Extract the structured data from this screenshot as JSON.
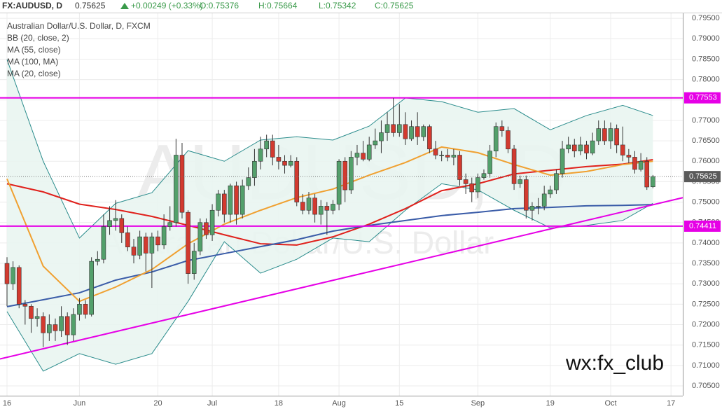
{
  "header": {
    "symbol": "FX:AUDUSD, D",
    "last": "0.75625",
    "change": "+0.00249 (+0.33%)",
    "open": "O:0.75376",
    "high": "H:0.75664",
    "low": "L:0.75342",
    "close": "C:0.75625"
  },
  "chart_data": {
    "type": "candlestick",
    "title": "Australian Dollar/U.S. Dollar, D, FXCM",
    "watermark": "AUDUSD, D",
    "watermark_subtitle": "Australian Dollar/U.S. Dollar",
    "annotation": "wx:fx_club",
    "categories": [
      "16",
      null,
      null,
      null,
      null,
      null,
      null,
      null,
      null,
      null,
      null,
      null,
      "Jun",
      null,
      null,
      null,
      null,
      null,
      null,
      null,
      null,
      null,
      null,
      null,
      null,
      "20",
      null,
      null,
      null,
      null,
      null,
      null,
      null,
      null,
      "Jul",
      null,
      null,
      null,
      null,
      null,
      null,
      null,
      null,
      null,
      null,
      "18",
      null,
      null,
      null,
      null,
      null,
      null,
      null,
      null,
      null,
      "Aug",
      null,
      null,
      null,
      null,
      null,
      null,
      null,
      null,
      null,
      "15",
      null,
      null,
      null,
      null,
      null,
      null,
      null,
      null,
      null,
      null,
      null,
      null,
      "Sep",
      null,
      null,
      null,
      null,
      null,
      null,
      null,
      null,
      null,
      null,
      null,
      "19",
      null,
      null,
      null,
      null,
      null,
      null,
      null,
      null,
      null,
      "Oct",
      null,
      null,
      null,
      null,
      null,
      null,
      null,
      null,
      null,
      "17"
    ],
    "open": [
      0.735,
      0.73,
      0.734,
      0.725,
      0.7245,
      0.7215,
      0.722,
      0.718,
      0.72,
      0.7185,
      0.722,
      0.7175,
      0.7225,
      0.725,
      0.7225,
      0.7355,
      0.736,
      0.744,
      0.7455,
      0.746,
      0.7425,
      0.739,
      0.737,
      0.7415,
      0.7375,
      0.7415,
      0.7395,
      0.744,
      0.745,
      0.7615,
      0.7475,
      0.7325,
      0.738,
      0.745,
      0.742,
      0.748,
      0.752,
      0.747,
      0.754,
      0.747,
      0.754,
      0.756,
      0.76,
      0.763,
      0.765,
      0.761,
      0.76,
      0.759,
      0.76,
      0.75,
      0.748,
      0.751,
      0.747,
      0.749,
      0.748,
      0.7495,
      0.76,
      0.753,
      0.761,
      0.762,
      0.7605,
      0.764,
      0.765,
      0.767,
      0.769,
      0.767,
      0.769,
      0.7655,
      0.7685,
      0.766,
      0.7685,
      0.763,
      0.7615,
      0.7615,
      0.761,
      0.7615,
      0.7555,
      0.7545,
      0.7525,
      0.756,
      0.757,
      0.7625,
      0.7685,
      0.7675,
      0.763,
      0.7545,
      0.7555,
      0.748,
      0.749,
      0.749,
      0.752,
      0.753,
      0.757,
      0.763,
      0.764,
      0.7625,
      0.764,
      0.762,
      0.765,
      0.768,
      0.765,
      0.768,
      0.764,
      0.7615,
      0.761,
      0.758,
      0.76,
      0.75376,
      null,
      null,
      null
    ],
    "high": [
      0.7365,
      0.7355,
      0.7345,
      0.726,
      0.725,
      0.724,
      0.723,
      0.7225,
      0.7215,
      0.7245,
      0.723,
      0.724,
      0.7265,
      0.726,
      0.7365,
      0.738,
      0.747,
      0.749,
      0.7505,
      0.747,
      0.744,
      0.741,
      0.743,
      0.7425,
      0.7425,
      0.743,
      0.747,
      0.749,
      0.7655,
      0.7645,
      0.748,
      0.74,
      0.746,
      0.746,
      0.7495,
      0.753,
      0.753,
      0.7545,
      0.755,
      0.7555,
      0.7585,
      0.763,
      0.766,
      0.7665,
      0.7665,
      0.764,
      0.7615,
      0.7615,
      0.761,
      0.752,
      0.7525,
      0.752,
      0.7505,
      0.75,
      0.7505,
      0.7605,
      0.761,
      0.7625,
      0.764,
      0.765,
      0.766,
      0.768,
      0.77,
      0.772,
      0.7755,
      0.774,
      0.772,
      0.77,
      0.772,
      0.769,
      0.769,
      0.765,
      0.7625,
      0.763,
      0.763,
      0.7625,
      0.757,
      0.756,
      0.757,
      0.758,
      0.764,
      0.7695,
      0.77,
      0.7685,
      0.764,
      0.7565,
      0.7565,
      0.75,
      0.751,
      0.754,
      0.754,
      0.758,
      0.765,
      0.766,
      0.7655,
      0.766,
      0.765,
      0.767,
      0.77,
      0.77,
      0.7695,
      0.769,
      0.7685,
      0.763,
      0.7625,
      0.762,
      0.761,
      0.75664,
      null,
      null,
      null
    ],
    "low": [
      0.7245,
      0.7285,
      0.724,
      0.72,
      0.718,
      0.7195,
      0.7145,
      0.716,
      0.716,
      0.717,
      0.715,
      0.716,
      0.721,
      0.7215,
      0.722,
      0.7345,
      0.735,
      0.742,
      0.743,
      0.74,
      0.738,
      0.735,
      0.736,
      0.733,
      0.729,
      0.738,
      0.7385,
      0.743,
      0.744,
      0.746,
      0.73,
      0.731,
      0.737,
      0.741,
      0.7405,
      0.7465,
      0.745,
      0.745,
      0.7445,
      0.746,
      0.753,
      0.754,
      0.758,
      0.761,
      0.759,
      0.758,
      0.757,
      0.7585,
      0.749,
      0.747,
      0.747,
      0.745,
      0.7445,
      0.742,
      0.747,
      0.748,
      0.75,
      0.752,
      0.759,
      0.76,
      0.76,
      0.763,
      0.762,
      0.765,
      0.766,
      0.766,
      0.764,
      0.765,
      0.764,
      0.765,
      0.762,
      0.7605,
      0.76,
      0.76,
      0.759,
      0.754,
      0.752,
      0.75,
      0.751,
      0.7555,
      0.756,
      0.761,
      0.766,
      0.762,
      0.753,
      0.7535,
      0.746,
      0.7455,
      0.747,
      0.748,
      0.751,
      0.752,
      0.756,
      0.762,
      0.761,
      0.7615,
      0.7605,
      0.7615,
      0.764,
      0.764,
      0.763,
      0.762,
      0.76,
      0.7595,
      0.757,
      0.7575,
      0.753,
      0.75342,
      null,
      null,
      null
    ],
    "close": [
      0.73,
      0.734,
      0.725,
      0.7245,
      0.7215,
      0.722,
      0.718,
      0.72,
      0.7185,
      0.722,
      0.7175,
      0.7225,
      0.725,
      0.7225,
      0.7355,
      0.736,
      0.744,
      0.7455,
      0.746,
      0.7425,
      0.739,
      0.737,
      0.7415,
      0.7375,
      0.7415,
      0.7395,
      0.744,
      0.745,
      0.7615,
      0.7475,
      0.7325,
      0.738,
      0.745,
      0.742,
      0.748,
      0.752,
      0.747,
      0.754,
      0.747,
      0.754,
      0.756,
      0.76,
      0.763,
      0.765,
      0.761,
      0.76,
      0.759,
      0.76,
      0.75,
      0.748,
      0.751,
      0.747,
      0.749,
      0.748,
      0.7495,
      0.76,
      0.753,
      0.761,
      0.762,
      0.7605,
      0.764,
      0.765,
      0.767,
      0.769,
      0.767,
      0.769,
      0.7655,
      0.7685,
      0.766,
      0.7685,
      0.763,
      0.7615,
      0.7615,
      0.761,
      0.7615,
      0.7555,
      0.7545,
      0.7525,
      0.756,
      0.757,
      0.7625,
      0.7685,
      0.7675,
      0.763,
      0.7545,
      0.7555,
      0.748,
      0.749,
      0.749,
      0.752,
      0.753,
      0.757,
      0.763,
      0.764,
      0.7625,
      0.764,
      0.762,
      0.765,
      0.768,
      0.765,
      0.768,
      0.764,
      0.7615,
      0.761,
      0.758,
      0.76,
      0.7537,
      0.75625,
      null,
      null,
      null
    ],
    "up_color": "#53a06b",
    "down_color": "#d23a2f",
    "bands": {
      "name": "BB (20, close, 2)",
      "color": "#2a8c8c",
      "fill": "#e9f5f1",
      "x": [
        0,
        6,
        12,
        18,
        24,
        30,
        36,
        42,
        48,
        54,
        60,
        66,
        72,
        78,
        84,
        90,
        96,
        102,
        107
      ],
      "upper": [
        0.7849,
        0.76,
        0.7412,
        0.7497,
        0.7523,
        0.7626,
        0.76,
        0.7652,
        0.766,
        0.7652,
        0.7686,
        0.7755,
        0.7746,
        0.772,
        0.7729,
        0.7677,
        0.7712,
        0.7737,
        0.7712
      ],
      "lower": [
        0.7232,
        0.7086,
        0.7129,
        0.7103,
        0.7129,
        0.7257,
        0.7403,
        0.7326,
        0.736,
        0.7412,
        0.7403,
        0.748,
        0.7545,
        0.753,
        0.748,
        0.7437,
        0.7443,
        0.7455,
        0.7497
      ]
    },
    "series": [
      {
        "name": "MA (55, close)",
        "color": "#e0201b",
        "x": [
          0,
          6,
          12,
          18,
          24,
          30,
          36,
          42,
          48,
          54,
          60,
          66,
          72,
          78,
          84,
          90,
          96,
          102,
          107
        ],
        "values": [
          0.7545,
          0.7525,
          0.7495,
          0.7482,
          0.7465,
          0.7443,
          0.742,
          0.7398,
          0.7395,
          0.7415,
          0.7446,
          0.7484,
          0.7528,
          0.7545,
          0.7569,
          0.7578,
          0.7587,
          0.7593,
          0.7604
        ]
      },
      {
        "name": "MA (100, MA)",
        "color": "#3a5ca8",
        "x": [
          0,
          6,
          12,
          18,
          24,
          30,
          36,
          42,
          48,
          54,
          60,
          66,
          72,
          78,
          84,
          90,
          96,
          102,
          107
        ],
        "values": [
          0.7244,
          0.7261,
          0.7278,
          0.7309,
          0.7329,
          0.7357,
          0.7374,
          0.7391,
          0.7408,
          0.7429,
          0.7443,
          0.7455,
          0.7467,
          0.7475,
          0.7484,
          0.7487,
          0.7491,
          0.7492,
          0.7494
        ]
      },
      {
        "name": "MA (20, close)",
        "color": "#f0a030",
        "x": [
          0,
          6,
          12,
          18,
          24,
          30,
          36,
          42,
          48,
          54,
          60,
          66,
          72,
          78,
          84,
          90,
          96,
          102,
          107
        ],
        "values": [
          0.7557,
          0.7343,
          0.7257,
          0.7292,
          0.7335,
          0.7398,
          0.7446,
          0.748,
          0.7511,
          0.7532,
          0.7566,
          0.7597,
          0.7635,
          0.7621,
          0.7592,
          0.7566,
          0.7575,
          0.7592,
          0.76
        ]
      }
    ],
    "levels": [
      {
        "value": 0.77553,
        "color": "#e600e6"
      },
      {
        "value": 0.74411,
        "color": "#e600e6"
      }
    ],
    "trendline": {
      "color": "#e600e6",
      "x": [
        0,
        110
      ],
      "values": [
        0.712,
        0.7504
      ]
    },
    "last_price": 0.75625,
    "ylim": [
      0.7026,
      0.7964
    ],
    "yticks": [
      {
        "value": 0.705,
        "label": "0.70500"
      },
      {
        "value": 0.71,
        "label": "0.71000"
      },
      {
        "value": 0.715,
        "label": "0.71500"
      },
      {
        "value": 0.72,
        "label": "0.72000"
      },
      {
        "value": 0.725,
        "label": "0.72500"
      },
      {
        "value": 0.73,
        "label": "0.73000"
      },
      {
        "value": 0.735,
        "label": "0.73500"
      },
      {
        "value": 0.74,
        "label": "0.74000"
      },
      {
        "value": 0.745,
        "label": "0.74500"
      },
      {
        "value": 0.75,
        "label": "0.75000"
      },
      {
        "value": 0.755,
        "label": "0.75500"
      },
      {
        "value": 0.76,
        "label": "0.76000"
      },
      {
        "value": 0.765,
        "label": "0.76500"
      },
      {
        "value": 0.77,
        "label": "0.77000"
      },
      {
        "value": 0.775,
        "label": "0.77500"
      },
      {
        "value": 0.78,
        "label": "0.78000"
      },
      {
        "value": 0.785,
        "label": "0.78500"
      },
      {
        "value": 0.79,
        "label": "0.79000"
      },
      {
        "value": 0.795,
        "label": "0.79500"
      }
    ],
    "grid": true
  }
}
